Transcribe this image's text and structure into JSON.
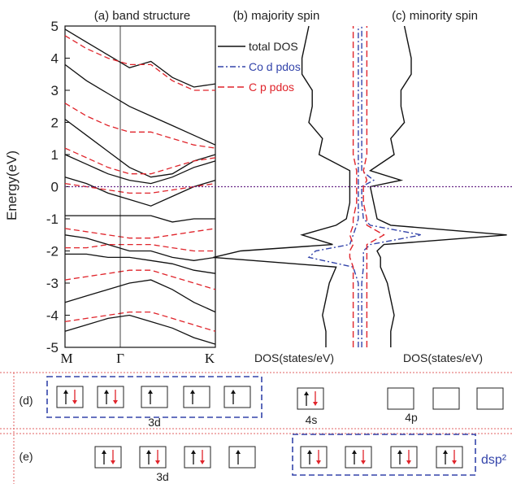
{
  "figure": {
    "panel_titles": [
      "(a) band structure",
      "(b) majority spin",
      "(c) minority spin"
    ],
    "y_axis_label": "Energy(eV)",
    "k_labels": [
      "M",
      "Γ",
      "K"
    ],
    "dos_x_label_majority": "DOS(states/eV)",
    "dos_x_label_minority": "DOS(states/eV)",
    "legend": [
      {
        "label": "total DOS",
        "color": "#111111",
        "style": "solid"
      },
      {
        "label": "Co d pdos",
        "color": "#3344aa",
        "style": "dashdot"
      },
      {
        "label": "C  p pdos",
        "color": "#e0242b",
        "style": "dashed"
      }
    ]
  },
  "chart_data": [
    {
      "type": "line",
      "panel": "(a) band structure",
      "ylabel": "Energy(eV)",
      "ylim": [
        -5,
        5
      ],
      "yticks": [
        -5,
        -4,
        -3,
        -2,
        -1,
        0,
        1,
        2,
        3,
        4,
        5
      ],
      "xticks": [
        "M",
        "Γ",
        "K"
      ],
      "fermi_level": 0,
      "series": [
        {
          "color": "#111111",
          "bands": [
            [
              4.9,
              4.5,
              4.1,
              3.7,
              3.9,
              3.4,
              3.1,
              3.2
            ],
            [
              3.8,
              3.3,
              2.9,
              2.5,
              2.2,
              1.9,
              1.6,
              1.3
            ],
            [
              2.1,
              1.6,
              1.1,
              0.6,
              0.3,
              0.4,
              0.8,
              1.0
            ],
            [
              1.0,
              0.7,
              0.4,
              0.2,
              0.1,
              0.3,
              0.6,
              0.8
            ],
            [
              0.3,
              0.1,
              -0.2,
              -0.4,
              -0.6,
              -0.3,
              0.0,
              0.2
            ],
            [
              -0.9,
              -0.9,
              -0.9,
              -0.9,
              -0.9,
              -1.1,
              -1.0,
              -1.0
            ],
            [
              -1.5,
              -1.6,
              -1.8,
              -2.0,
              -2.0,
              -2.2,
              -2.3,
              -2.2
            ],
            [
              -2.1,
              -2.1,
              -2.2,
              -2.2,
              -2.3,
              -2.4,
              -2.6,
              -2.7
            ],
            [
              -3.6,
              -3.4,
              -3.2,
              -3.0,
              -2.9,
              -3.2,
              -3.6,
              -3.9
            ],
            [
              -4.5,
              -4.3,
              -4.1,
              -4.0,
              -4.2,
              -4.4,
              -4.7,
              -4.9
            ]
          ]
        },
        {
          "color": "#e0242b",
          "bands": [
            [
              4.7,
              4.3,
              4.0,
              3.8,
              3.8,
              3.3,
              3.0,
              3.0
            ],
            [
              2.6,
              2.2,
              1.9,
              1.7,
              1.7,
              1.5,
              1.3,
              1.2
            ],
            [
              1.2,
              0.9,
              0.6,
              0.4,
              0.4,
              0.6,
              0.8,
              0.9
            ],
            [
              0.1,
              0.0,
              -0.1,
              -0.2,
              -0.2,
              -0.1,
              0.0,
              0.1
            ],
            [
              -1.3,
              -1.4,
              -1.5,
              -1.6,
              -1.6,
              -1.5,
              -1.4,
              -1.3
            ],
            [
              -1.9,
              -1.9,
              -1.8,
              -1.8,
              -1.8,
              -1.9,
              -2.0,
              -2.0
            ],
            [
              -2.9,
              -2.8,
              -2.7,
              -2.6,
              -2.6,
              -2.8,
              -3.0,
              -3.2
            ],
            [
              -4.2,
              -4.1,
              -4.0,
              -3.9,
              -3.9,
              -4.1,
              -4.3,
              -4.5
            ]
          ]
        }
      ]
    },
    {
      "type": "line",
      "panel": "(b) majority spin / (c) minority spin",
      "xlabel": "DOS(states/eV)",
      "ylim": [
        -5,
        5
      ],
      "energies": [
        -5.0,
        -4.5,
        -4.0,
        -3.5,
        -3.0,
        -2.5,
        -2.2,
        -2.0,
        -1.8,
        -1.5,
        -1.2,
        -1.0,
        -0.5,
        0.0,
        0.2,
        0.5,
        1.0,
        1.5,
        2.0,
        2.5,
        3.0,
        3.5,
        4.0,
        4.5,
        5.0
      ],
      "series": [
        {
          "name": "total DOS",
          "spin": "majority",
          "values": [
            1.0,
            1.0,
            1.1,
            1.0,
            0.9,
            0.7,
            4.3,
            3.5,
            0.8,
            1.7,
            0.7,
            0.4,
            0.3,
            0.3,
            0.3,
            0.3,
            1.2,
            1.1,
            1.5,
            1.4,
            1.4,
            1.7,
            1.7,
            1.6,
            1.5
          ]
        },
        {
          "name": "total DOS",
          "spin": "minority",
          "values": [
            0.9,
            0.9,
            1.0,
            0.9,
            0.8,
            0.6,
            0.6,
            0.5,
            0.7,
            4.3,
            0.9,
            0.5,
            0.4,
            0.3,
            1.2,
            0.3,
            1.0,
            0.9,
            1.3,
            1.2,
            1.2,
            1.5,
            1.5,
            1.4,
            1.3
          ]
        },
        {
          "name": "Co d pdos",
          "spin": "majority",
          "values": [
            0.05,
            0.05,
            0.05,
            0.05,
            0.05,
            0.2,
            1.5,
            1.3,
            0.3,
            0.2,
            0.1,
            0.05,
            0.05,
            0.05,
            0.05,
            0.05,
            0.05,
            0.05,
            0.05,
            0.05,
            0.05,
            0.05,
            0.05,
            0.05,
            0.05
          ]
        },
        {
          "name": "Co d pdos",
          "spin": "minority",
          "values": [
            0.05,
            0.05,
            0.05,
            0.05,
            0.05,
            0.1,
            0.1,
            0.1,
            0.3,
            1.8,
            0.3,
            0.1,
            0.05,
            0.05,
            0.4,
            0.05,
            0.05,
            0.05,
            0.05,
            0.05,
            0.05,
            0.05,
            0.05,
            0.05,
            0.05
          ]
        },
        {
          "name": "C  p pdos",
          "spin": "majority",
          "values": [
            0.2,
            0.2,
            0.2,
            0.2,
            0.2,
            0.2,
            0.3,
            0.3,
            0.2,
            0.3,
            0.2,
            0.2,
            0.1,
            0.1,
            0.1,
            0.1,
            0.2,
            0.2,
            0.2,
            0.2,
            0.2,
            0.2,
            0.2,
            0.2,
            0.2
          ]
        },
        {
          "name": "C  p pdos",
          "spin": "minority",
          "values": [
            0.2,
            0.2,
            0.2,
            0.2,
            0.2,
            0.2,
            0.2,
            0.2,
            0.2,
            0.7,
            0.2,
            0.2,
            0.1,
            0.1,
            0.2,
            0.1,
            0.2,
            0.2,
            0.2,
            0.2,
            0.2,
            0.2,
            0.2,
            0.2,
            0.2
          ]
        }
      ]
    }
  ],
  "orbitals": {
    "row_d": {
      "label": "(d)",
      "groups": [
        {
          "name": "3d",
          "boxes": [
            "updown",
            "updown",
            "up",
            "up",
            "up"
          ]
        },
        {
          "name": "4s",
          "boxes": [
            "updown"
          ]
        },
        {
          "name": "4p",
          "boxes": [
            "empty",
            "empty",
            "empty"
          ]
        }
      ]
    },
    "row_e": {
      "label": "(e)",
      "groups": [
        {
          "name": "3d",
          "boxes": [
            "updown",
            "updown",
            "updown",
            "up"
          ]
        },
        {
          "name": "dsp²",
          "boxes": [
            "updown",
            "updown",
            "updown",
            "updown"
          ]
        }
      ]
    },
    "colors": {
      "up": "#111111",
      "down": "#e0242b",
      "hybrid_box": "#3344aa",
      "separator": "#e06060"
    }
  }
}
